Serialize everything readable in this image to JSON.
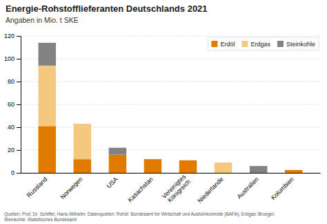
{
  "chart_data": {
    "type": "bar",
    "stacked": true,
    "title": "Energie-Rohstofflieferanten Deutschlands 2021",
    "subtitle": "Angaben in Mio. t SKE",
    "categories": [
      "Russland",
      "Norwegen",
      "USA",
      "Kasachstan",
      "Vereinigtes\nKönigreich",
      "Niederlande",
      "Australien",
      "Kolumbien"
    ],
    "series": [
      {
        "name": "Erdöl",
        "color": "#e07b00",
        "values": [
          41,
          12,
          16,
          12,
          11,
          0,
          0,
          2.5
        ]
      },
      {
        "name": "Erdgas",
        "color": "#f5c880",
        "values": [
          53,
          31,
          0,
          0,
          0,
          9,
          0,
          0
        ]
      },
      {
        "name": "Steinkohle",
        "color": "#828282",
        "values": [
          20,
          0,
          6,
          0,
          0,
          0,
          6,
          0
        ]
      }
    ],
    "ylim": [
      0,
      120
    ],
    "yticks": [
      0,
      20,
      40,
      60,
      80,
      100,
      120
    ],
    "grid": true,
    "legend": "upper right",
    "annotations": [
      "Quellen: Prof. Dr. Schiffer, Hans-Wilhelm; Datenquellen: Rohöl: Bundesamt für Wirtschaft und Ausfuhrkontrolle (BAFA); Erdgas: Bruegel;\nSteinkohle: Statistisches Bundesamt"
    ]
  }
}
